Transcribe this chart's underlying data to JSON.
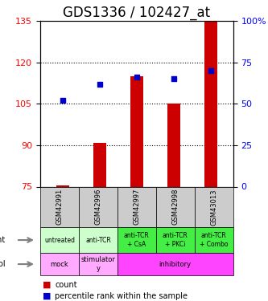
{
  "title": "GDS1336 / 102427_at",
  "samples": [
    "GSM42991",
    "GSM42996",
    "GSM42997",
    "GSM42998",
    "GSM43013"
  ],
  "count_values": [
    75.5,
    91,
    115,
    105,
    135
  ],
  "percentile_values": [
    52,
    62,
    66,
    65,
    70
  ],
  "ylim_left": [
    75,
    135
  ],
  "ylim_right": [
    0,
    100
  ],
  "yticks_left": [
    75,
    90,
    105,
    120,
    135
  ],
  "yticks_right": [
    0,
    25,
    50,
    75,
    100
  ],
  "ytick_labels_left": [
    "75",
    "90",
    "105",
    "120",
    "135"
  ],
  "ytick_labels_right": [
    "0",
    "25",
    "50",
    "75",
    "100%"
  ],
  "bar_color": "#cc0000",
  "dot_color": "#0000cc",
  "agent_labels": [
    "untreated",
    "anti-TCR",
    "anti-TCR\n+ CsA",
    "anti-TCR\n+ PKCi",
    "anti-TCR\n+ Combo"
  ],
  "agent_colors": [
    "#ccffcc",
    "#ccffcc",
    "#44ee44",
    "#44ee44",
    "#44ee44"
  ],
  "proto_spans": [
    [
      0,
      1,
      "mock",
      "#ffaaff"
    ],
    [
      1,
      2,
      "stimulator\ny",
      "#ffaaff"
    ],
    [
      2,
      5,
      "inhibitory",
      "#ff44ff"
    ]
  ],
  "sample_bg_color": "#cccccc",
  "legend_count_color": "#cc0000",
  "legend_pct_color": "#0000cc",
  "title_fontsize": 12,
  "tick_fontsize": 8
}
